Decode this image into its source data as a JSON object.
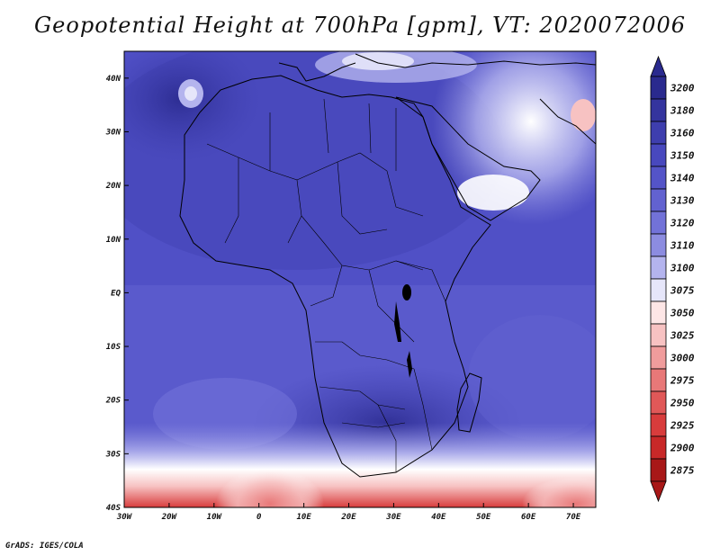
{
  "figure": {
    "title": "Geopotential Height at 700hPa [gpm], VT: 2020072006",
    "credit": "GrADS: IGES/COLA"
  },
  "map": {
    "lon_range": [
      -30,
      75
    ],
    "lat_range": [
      -40,
      45
    ],
    "x_ticks": [
      "30W",
      "20W",
      "10W",
      "0",
      "10E",
      "20E",
      "30E",
      "40E",
      "50E",
      "60E",
      "70E"
    ],
    "y_ticks": [
      "40N",
      "30N",
      "20N",
      "10N",
      "EQ",
      "10S",
      "20S",
      "30S",
      "40S"
    ]
  },
  "colorbar": {
    "levels": [
      "3200",
      "3180",
      "3160",
      "3150",
      "3140",
      "3130",
      "3120",
      "3110",
      "3100",
      "3075",
      "3050",
      "3025",
      "3000",
      "2975",
      "2950",
      "2925",
      "2900",
      "2875"
    ],
    "colors": [
      "#2a2a8e",
      "#34349e",
      "#3e3eae",
      "#4848be",
      "#5454c8",
      "#6262d0",
      "#7272d8",
      "#8c8ce0",
      "#b4b4ee",
      "#e6e6fa",
      "#fde6e6",
      "#f7c2c2",
      "#f09c9c",
      "#e87878",
      "#e05858",
      "#d83c3c",
      "#c82828",
      "#a81818"
    ],
    "top_arrow_color": "#2a2a8e",
    "bottom_arrow_color": "#a81818"
  }
}
